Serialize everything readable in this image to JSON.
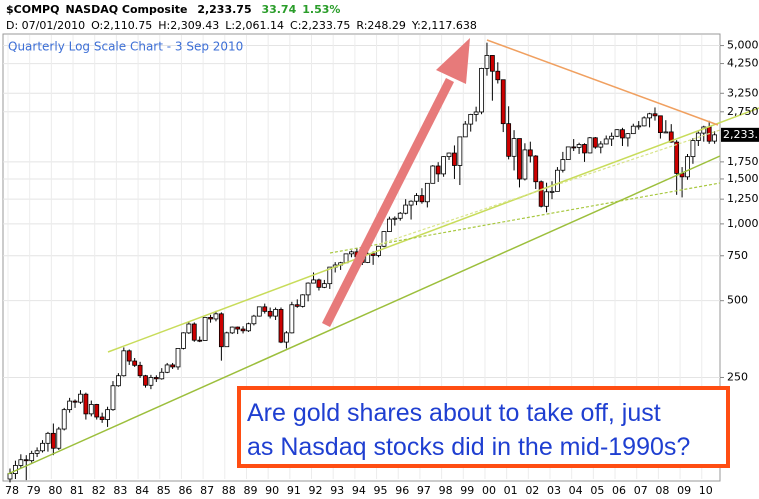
{
  "header": {
    "symbol": "$COMPQ",
    "name": "NASDAQ Composite",
    "last": "2,233.75",
    "change": "33.74",
    "change_pct": "1.53%",
    "date": "D: 07/01/2010",
    "open": "O:2,110.75",
    "high": "H:2,309.43",
    "low": "L:2,061.14",
    "close": "C:2,233.75",
    "range": "R:248.29",
    "y": "Y:2,117.638"
  },
  "chart_data": {
    "type": "candlestick",
    "title": "Quarterly Log Scale Chart - 3 Sep 2010",
    "annotation": [
      "Are gold shares about to take off, just",
      "as Nasdaq stocks did in the mid-1990s?"
    ],
    "last_price_label": "2,233.",
    "log_scale": true,
    "grid": true,
    "up_color": "#ffffff",
    "down_color": "#cc0000",
    "outline_color": "#000000",
    "ylim": [
      100,
      5500
    ],
    "yticks": [
      250,
      500,
      750,
      {
        "value": 1000,
        "label": "1,000"
      },
      {
        "value": 1250,
        "label": "1,250"
      },
      {
        "value": 1500,
        "label": "1,500"
      },
      {
        "value": 1750,
        "label": "1,750"
      },
      {
        "value": 2750,
        "label": "2,750"
      },
      {
        "value": 3250,
        "label": "3,250"
      },
      {
        "value": 4250,
        "label": "4,250"
      },
      {
        "value": 5000,
        "label": "5,000"
      }
    ],
    "categories": [
      "78",
      null,
      null,
      null,
      "79",
      null,
      null,
      null,
      "80",
      null,
      null,
      null,
      "81",
      null,
      null,
      null,
      "82",
      null,
      null,
      null,
      "83",
      null,
      null,
      null,
      "84",
      null,
      null,
      null,
      "85",
      null,
      null,
      null,
      "86",
      null,
      null,
      null,
      "87",
      null,
      null,
      null,
      "88",
      null,
      null,
      null,
      "89",
      null,
      null,
      null,
      "90",
      null,
      null,
      null,
      "91",
      null,
      null,
      null,
      "92",
      null,
      null,
      null,
      "93",
      null,
      null,
      null,
      "94",
      null,
      null,
      null,
      "95",
      null,
      null,
      null,
      "96",
      null,
      null,
      null,
      "97",
      null,
      null,
      null,
      "98",
      null,
      null,
      null,
      "99",
      null,
      null,
      null,
      "00",
      null,
      null,
      null,
      "01",
      null,
      null,
      null,
      "02",
      null,
      null,
      null,
      "03",
      null,
      null,
      null,
      "04",
      null,
      null,
      null,
      "05",
      null,
      null,
      null,
      "06",
      null,
      null,
      null,
      "07",
      null,
      null,
      null,
      "08",
      null,
      null,
      null,
      "09",
      null,
      null,
      null,
      "10",
      null,
      null
    ],
    "open": [
      100,
      105,
      113,
      119,
      118,
      126,
      129,
      138,
      151,
      132,
      157,
      187,
      202,
      200,
      215,
      180,
      196,
      175,
      171,
      187,
      232,
      254,
      318,
      290,
      279,
      254,
      233,
      250,
      247,
      262,
      280,
      275,
      325,
      374,
      405,
      350,
      349,
      430,
      424,
      444,
      330,
      374,
      394,
      387,
      381,
      406,
      435,
      473,
      454,
      435,
      462,
      344,
      374,
      482,
      475,
      527,
      586,
      603,
      564,
      583,
      677,
      690,
      704,
      763,
      777,
      743,
      706,
      764,
      752,
      817,
      933,
      1044,
      1052,
      1101,
      1185,
      1227,
      1291,
      1221,
      1442,
      1686,
      1570,
      1835,
      1895,
      1694,
      2193,
      2461,
      2686,
      2746,
      4069,
      4573,
      3966,
      3673,
      2471,
      1840,
      2160,
      1499,
      1950,
      1845,
      1463,
      1172,
      1336,
      1341,
      1623,
      1787,
      2003,
      1994,
      2048,
      1897,
      2175,
      1999,
      2057,
      2152,
      2205,
      2340,
      2172,
      2258,
      2415,
      2422,
      2603,
      2701,
      2652,
      2279,
      2293,
      2092,
      1577,
      1529,
      1835,
      2122,
      2269,
      2398,
      2110.75
    ],
    "high": [
      110,
      118,
      125,
      124,
      129,
      133,
      142,
      153,
      165,
      160,
      190,
      208,
      205,
      223,
      218,
      203,
      197,
      182,
      192,
      242,
      260,
      328,
      322,
      298,
      288,
      256,
      256,
      255,
      272,
      285,
      285,
      326,
      376,
      412,
      411,
      362,
      432,
      440,
      456,
      450,
      378,
      396,
      396,
      397,
      410,
      440,
      474,
      487,
      470,
      470,
      470,
      380,
      495,
      506,
      530,
      590,
      645,
      610,
      603,
      677,
      708,
      710,
      765,
      787,
      803,
      750,
      773,
      780,
      820,
      935,
      1067,
      1070,
      1113,
      1250,
      1237,
      1320,
      1380,
      1445,
      1700,
      1745,
      1840,
      1905,
      2030,
      2200,
      2530,
      2700,
      2880,
      4090,
      5132,
      4580,
      4300,
      3670,
      2890,
      2330,
      2160,
      2070,
      2100,
      1860,
      1480,
      1450,
      1470,
      1670,
      1915,
      2010,
      2150,
      2080,
      2070,
      2190,
      2190,
      2110,
      2220,
      2280,
      2350,
      2380,
      2270,
      2470,
      2530,
      2640,
      2725,
      2860,
      2660,
      2550,
      2460,
      2130,
      1670,
      1880,
      2170,
      2300,
      2425,
      2535,
      2309.43
    ],
    "low": [
      97,
      100,
      110,
      99,
      116,
      122,
      127,
      128,
      124,
      130,
      155,
      182,
      190,
      197,
      171,
      176,
      171,
      166,
      160,
      185,
      230,
      252,
      280,
      275,
      249,
      228,
      225,
      240,
      245,
      260,
      270,
      268,
      322,
      370,
      345,
      344,
      348,
      410,
      415,
      291,
      330,
      370,
      370,
      372,
      377,
      400,
      433,
      445,
      426,
      420,
      341,
      325,
      372,
      469,
      470,
      497,
      585,
      548,
      560,
      556,
      645,
      660,
      700,
      740,
      735,
      690,
      702,
      691,
      740,
      810,
      930,
      985,
      1030,
      1090,
      1040,
      1185,
      1200,
      1160,
      1440,
      1460,
      1530,
      1780,
      1500,
      1420,
      2190,
      2300,
      2520,
      2690,
      3810,
      3040,
      3550,
      2290,
      1790,
      1620,
      1390,
      1480,
      1740,
      1370,
      1160,
      1110,
      1250,
      1340,
      1590,
      1780,
      1930,
      1880,
      1750,
      1890,
      1970,
      1890,
      2050,
      2020,
      2190,
      2020,
      2010,
      2250,
      2340,
      2410,
      2390,
      2540,
      2160,
      2270,
      2080,
      1300,
      1270,
      1490,
      1720,
      2020,
      2100,
      2060,
      2061.14
    ],
    "close": [
      105,
      113,
      119,
      118,
      126,
      129,
      138,
      151,
      132,
      157,
      187,
      202,
      200,
      215,
      180,
      196,
      175,
      171,
      187,
      232,
      254,
      318,
      290,
      279,
      254,
      233,
      250,
      247,
      262,
      280,
      275,
      325,
      374,
      405,
      350,
      349,
      430,
      424,
      444,
      330,
      374,
      394,
      387,
      381,
      406,
      435,
      473,
      454,
      435,
      462,
      344,
      374,
      482,
      475,
      527,
      586,
      603,
      564,
      583,
      677,
      690,
      704,
      763,
      777,
      743,
      706,
      764,
      752,
      817,
      933,
      1044,
      1052,
      1101,
      1185,
      1227,
      1291,
      1221,
      1442,
      1686,
      1570,
      1835,
      1895,
      1694,
      2193,
      2461,
      2686,
      2746,
      4069,
      4573,
      3966,
      3673,
      2471,
      1840,
      2160,
      1499,
      1950,
      1845,
      1463,
      1172,
      1336,
      1341,
      1623,
      1787,
      2003,
      1994,
      2048,
      1897,
      2175,
      1999,
      2057,
      2152,
      2205,
      2340,
      2172,
      2258,
      2415,
      2422,
      2603,
      2701,
      2652,
      2279,
      2293,
      2092,
      1577,
      1529,
      1835,
      2122,
      2269,
      2398,
      2109,
      2233.75
    ]
  }
}
